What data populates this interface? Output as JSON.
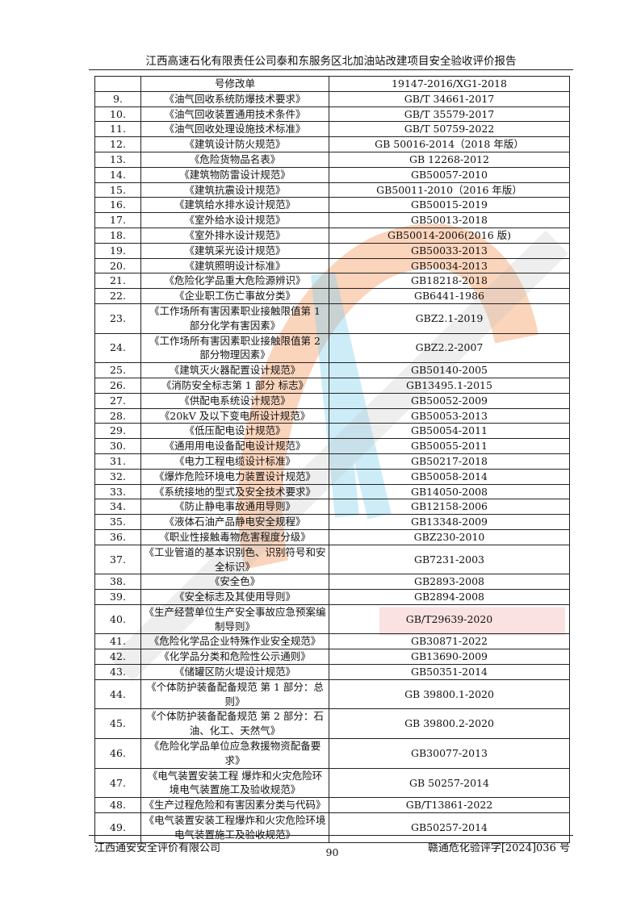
{
  "header": {
    "title": "江西高速石化有限责任公司泰和东服务区北加油站改建项目安全验收评价报告"
  },
  "table": {
    "rows": [
      [
        "",
        "号修改单",
        "19147-2016/XG1-2018"
      ],
      [
        "9.",
        "《油气回收系统防爆技术要求》",
        "GB/T 34661-2017"
      ],
      [
        "10.",
        "《油气回收装置通用技术条件》",
        "GB/T 35579-2017"
      ],
      [
        "11.",
        "《油气回收处理设施技术标准》",
        "GB/T 50759-2022"
      ],
      [
        "12.",
        "《建筑设计防火规范》",
        "GB 50016-2014（2018 年版）"
      ],
      [
        "13.",
        "《危险货物品名表》",
        "GB 12268-2012"
      ],
      [
        "14.",
        "《建筑物防雷设计规范》",
        "GB50057-2010"
      ],
      [
        "15.",
        "《建筑抗震设计规范》",
        "GB50011-2010（2016 年版）"
      ],
      [
        "16.",
        "《建筑给水排水设计规范》",
        "GB50015-2019"
      ],
      [
        "17.",
        "《室外给水设计规范》",
        "GB50013-2018"
      ],
      [
        "18.",
        "《室外排水设计规范》",
        "GB50014-2006(2016 版)"
      ],
      [
        "19.",
        "《建筑采光设计规范》",
        "GB50033-2013"
      ],
      [
        "20.",
        "《建筑照明设计标准》",
        "GB50034-2013"
      ],
      [
        "21.",
        "《危险化学品重大危险源辨识》",
        "GB18218-2018"
      ],
      [
        "22.",
        "《企业职工伤亡事故分类》",
        "GB6441-1986"
      ],
      [
        "23.",
        "《工作场所有害因素职业接触限值第 1 部分化学有害因素》",
        "GBZ2.1-2019"
      ],
      [
        "24.",
        "《工作场所有害因素职业接触限值第 2 部分物理因素》",
        "GBZ2.2-2007"
      ],
      [
        "25.",
        "《建筑灭火器配置设计规范》",
        "GB50140-2005"
      ],
      [
        "26.",
        "《消防安全标志第 1 部分  标志》",
        "GB13495.1-2015"
      ],
      [
        "27.",
        "《供配电系统设计规范》",
        "GB50052-2009"
      ],
      [
        "28.",
        "《20kV 及以下变电所设计规范》",
        "GB50053-2013"
      ],
      [
        "29.",
        "《低压配电设计规范》",
        "GB50054-2011"
      ],
      [
        "30.",
        "《通用用电设备配电设计规范》",
        "GB50055-2011"
      ],
      [
        "31.",
        "《电力工程电缆设计标准》",
        "GB50217-2018"
      ],
      [
        "32.",
        "《爆炸危险环境电力装置设计规范》",
        "GB50058-2014"
      ],
      [
        "33.",
        "《系统接地的型式及安全技术要求》",
        "GB14050-2008"
      ],
      [
        "34.",
        "《防止静电事故通用导则》",
        "GB12158-2006"
      ],
      [
        "35.",
        "《液体石油产品静电安全规程》",
        "GB13348-2009"
      ],
      [
        "36.",
        "《职业性接触毒物危害程度分级》",
        "GBZ230-2010"
      ],
      [
        "37.",
        "《工业管道的基本识别色、识别符号和安全标识》",
        "GB7231-2003"
      ],
      [
        "38.",
        "《安全色》",
        "GB2893-2008"
      ],
      [
        "39.",
        "《安全标志及其使用导则》",
        "GB2894-2008"
      ],
      [
        "40.",
        "《生产经营单位生产安全事故应急预案编制导则》",
        "GB/T29639-2020"
      ],
      [
        "41.",
        "《危险化学品企业特殊作业安全规范》",
        "GB30871-2022"
      ],
      [
        "42.",
        "《化学品分类和危险性公示通则》",
        "GB13690-2009"
      ],
      [
        "43.",
        "《储罐区防火堤设计规范》",
        "GB50351-2014"
      ],
      [
        "44.",
        "《个体防护装备配备规范  第 1 部分：总则》",
        "GB 39800.1-2020"
      ],
      [
        "45.",
        "《个体防护装备配备规范  第 2 部分：石油、化工、天然气》",
        "GB 39800.2-2020"
      ],
      [
        "46.",
        "《危险化学品单位应急救援物资配备要求》",
        "GB30077-2013"
      ],
      [
        "47.",
        "《电气装置安装工程  爆炸和火灾危险环境电气装置施工及验收规范》",
        "GB 50257-2014"
      ],
      [
        "48.",
        "《生产过程危险和有害因素分类与代码》",
        "GB/T13861-2022"
      ],
      [
        "49.",
        "《电气装置安装工程爆炸和火灾危险环境电气装置施工及验收规范》",
        "GB50257-2014"
      ]
    ]
  },
  "watermark": {
    "text_grey": "江西通安安全评价有限公司",
    "text_red": "江西通安",
    "colors": {
      "orange": "#f6a06a",
      "blue": "#7fd0ee",
      "grey": "#bdbdbd",
      "red": "#f08a8a"
    }
  },
  "page_number": "90",
  "footer": {
    "left": "江西通安安全评价有限公司",
    "right": "赣通危化验评字[2024]036 号"
  }
}
